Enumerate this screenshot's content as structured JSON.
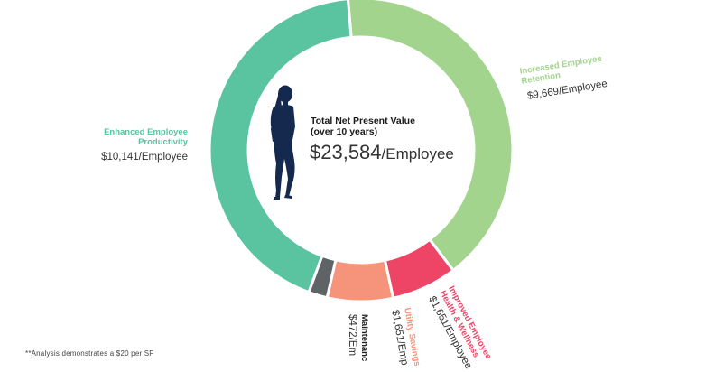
{
  "chart_data": {
    "type": "pie",
    "subtype": "donut",
    "center": {
      "title_line1": "Total Net Present Value",
      "title_line2": "(over 10 years)",
      "value": "$23,584",
      "unit": "/Employee"
    },
    "slices": [
      {
        "label_line1": "Increased Employee",
        "label_line2": "Retention",
        "value": 9669,
        "display": "$9,669/Employee",
        "color": "#a3d48e"
      },
      {
        "label_line1": "Improved Employee",
        "label_line2": "Health & Wellness",
        "value": 1651,
        "display": "$1,651/Employee",
        "color": "#ee4566"
      },
      {
        "label_line1": "Utility Savings",
        "label_line2": "",
        "value": 1651,
        "display": "$1,651/Emp",
        "color": "#f5937b"
      },
      {
        "label_line1": "Maintenanc",
        "label_line2": "",
        "value": 472,
        "display": "$472/Em",
        "color": "#5f6366"
      },
      {
        "label_line1": "Enhanced Employee",
        "label_line2": "Productivity",
        "value": 10141,
        "display": "$10,141/Employee",
        "color": "#5ac3a0"
      }
    ]
  },
  "footnote": "**Analysis demonstrates a $20 per SF"
}
